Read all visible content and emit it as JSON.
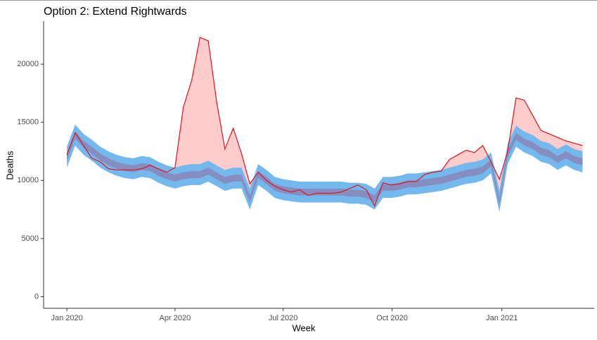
{
  "chart_data": {
    "type": "line",
    "title": "Option 2: Extend Rightwards",
    "xlabel": "Week",
    "ylabel": "Deaths",
    "x": [
      0,
      1,
      2,
      3,
      4,
      5,
      6,
      7,
      8,
      9,
      10,
      11,
      12,
      13,
      14,
      15,
      16,
      17,
      18,
      19,
      20,
      21,
      22,
      23,
      24,
      25,
      26,
      27,
      28,
      29,
      30,
      31,
      32,
      33,
      34,
      35,
      36,
      37,
      38,
      39,
      40,
      41,
      42,
      43,
      44,
      45,
      46,
      47,
      48,
      49,
      50,
      51,
      52,
      53,
      54,
      55,
      56,
      57,
      58,
      59,
      60,
      61,
      62
    ],
    "xlim": [
      -2.8,
      63.4
    ],
    "xticks": [
      {
        "value": 0,
        "label": "Jan 2020"
      },
      {
        "value": 13,
        "label": "Apr 2020"
      },
      {
        "value": 26,
        "label": "Jul 2020"
      },
      {
        "value": 39.1,
        "label": "Oct 2020"
      },
      {
        "value": 52.3,
        "label": "Jan 2021"
      }
    ],
    "ylim": [
      -1000,
      23700
    ],
    "yticks": [
      0,
      5000,
      10000,
      15000,
      20000
    ],
    "bands": [
      {
        "color": "#74b9ee",
        "lower": [
          11100,
          13000,
          12200,
          11700,
          11100,
          10700,
          10400,
          10200,
          10100,
          10300,
          10200,
          9800,
          9500,
          9300,
          9500,
          9600,
          9600,
          9900,
          9500,
          9100,
          9300,
          9300,
          7500,
          9600,
          9100,
          8500,
          8300,
          8200,
          8100,
          8100,
          8100,
          8100,
          8100,
          8100,
          8000,
          8000,
          7900,
          7500,
          8500,
          8500,
          8600,
          8800,
          8800,
          8900,
          9000,
          9100,
          9300,
          9500,
          9700,
          9800,
          10000,
          10600,
          7300,
          11400,
          12900,
          12400,
          12100,
          11600,
          11400,
          10900,
          11300,
          10900,
          10700
        ],
        "upper": [
          12900,
          14800,
          14000,
          13500,
          12900,
          12500,
          12200,
          12000,
          11900,
          12100,
          12000,
          11600,
          11300,
          11100,
          11300,
          11400,
          11400,
          11700,
          11300,
          10900,
          11100,
          11100,
          9300,
          11400,
          10900,
          10300,
          10100,
          10000,
          9900,
          9900,
          9900,
          9900,
          9900,
          9900,
          9800,
          9800,
          9700,
          9300,
          10300,
          10300,
          10400,
          10600,
          10600,
          10700,
          10800,
          10900,
          11100,
          11300,
          11500,
          11600,
          11800,
          12400,
          9100,
          13200,
          14700,
          14200,
          13900,
          13400,
          13200,
          12700,
          13100,
          12700,
          12500
        ]
      },
      {
        "color": "#8a86b8",
        "lower": [
          11700,
          13600,
          12800,
          12300,
          11700,
          11300,
          11000,
          10800,
          10700,
          10900,
          10800,
          10400,
          10100,
          9900,
          10100,
          10200,
          10200,
          10500,
          10100,
          9700,
          9900,
          9900,
          8100,
          10200,
          9700,
          9100,
          8900,
          8800,
          8700,
          8700,
          8700,
          8700,
          8700,
          8700,
          8600,
          8600,
          8500,
          8100,
          9100,
          9100,
          9200,
          9400,
          9400,
          9500,
          9600,
          9700,
          9900,
          10100,
          10300,
          10400,
          10600,
          11200,
          7900,
          12000,
          13500,
          13000,
          12700,
          12200,
          12000,
          11500,
          11900,
          11500,
          11300
        ],
        "upper": [
          12300,
          14200,
          13400,
          12900,
          12300,
          11900,
          11600,
          11400,
          11300,
          11500,
          11400,
          11000,
          10700,
          10500,
          10700,
          10800,
          10800,
          11100,
          10700,
          10300,
          10500,
          10500,
          8700,
          10800,
          10300,
          9700,
          9500,
          9400,
          9300,
          9300,
          9300,
          9300,
          9300,
          9300,
          9200,
          9200,
          9100,
          8700,
          9700,
          9700,
          9800,
          10000,
          10000,
          10100,
          10200,
          10300,
          10500,
          10700,
          10900,
          11000,
          11200,
          11800,
          8500,
          12600,
          14100,
          13600,
          13300,
          12800,
          12600,
          12100,
          12500,
          12100,
          11900
        ]
      }
    ],
    "series": [
      {
        "color": "#e3121b",
        "fill_color": "#ffcccc",
        "values": [
          12200,
          14100,
          13000,
          11900,
          11600,
          11000,
          10900,
          10900,
          10900,
          11000,
          11300,
          11000,
          10700,
          11100,
          16300,
          18600,
          22300,
          22000,
          16800,
          12700,
          14500,
          12300,
          9700,
          10700,
          10000,
          9500,
          9200,
          9000,
          9200,
          8700,
          8900,
          8900,
          8900,
          9000,
          9300,
          9600,
          9200,
          7800,
          9800,
          9600,
          9700,
          9900,
          9900,
          10500,
          10700,
          10800,
          11800,
          12200,
          12600,
          12400,
          13000,
          11600,
          10100,
          12500,
          17100,
          16900,
          15600,
          14300,
          14000,
          13700,
          13400,
          13200,
          13000
        ]
      }
    ]
  }
}
